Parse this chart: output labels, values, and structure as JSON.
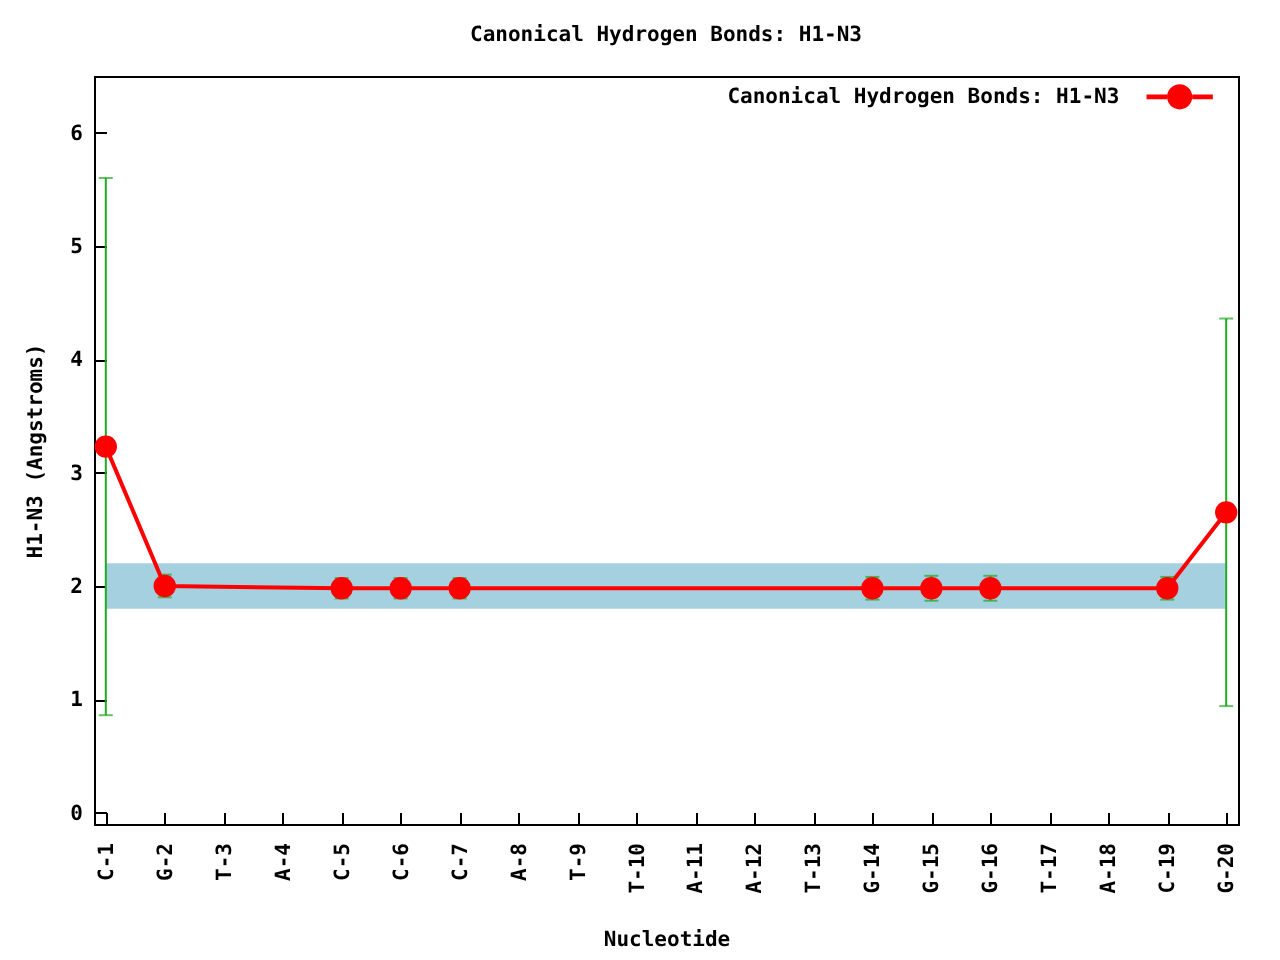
{
  "chart_data": {
    "type": "line",
    "title": "Canonical Hydrogen Bonds: H1-N3",
    "xlabel": "Nucleotide",
    "ylabel": "H1-N3 (Angstroms)",
    "categories": [
      "C-1",
      "G-2",
      "T-3",
      "A-4",
      "C-5",
      "C-6",
      "C-7",
      "A-8",
      "T-9",
      "T-10",
      "A-11",
      "A-12",
      "T-13",
      "G-14",
      "G-15",
      "G-16",
      "T-17",
      "A-18",
      "C-19",
      "G-20"
    ],
    "series": [
      {
        "name": "Canonical Hydrogen Bonds: H1-N3",
        "color": "#ff0000",
        "x": [
          "C-1",
          "G-2",
          "C-5",
          "C-6",
          "C-7",
          "G-14",
          "G-15",
          "G-16",
          "C-19",
          "G-20"
        ],
        "values": [
          3.23,
          2.0,
          1.98,
          1.98,
          1.98,
          1.98,
          1.98,
          1.98,
          1.98,
          2.65
        ],
        "errors": [
          2.37,
          0.1,
          0.09,
          0.09,
          0.09,
          0.1,
          0.11,
          0.11,
          0.1,
          1.71
        ]
      }
    ],
    "ylim": [
      -0.1,
      6.5
    ],
    "yticks": [
      0,
      1,
      2,
      3,
      4,
      5,
      6
    ],
    "bands": [
      {
        "axis": "y",
        "from": 1.8,
        "to": 2.2,
        "color": "#a4d0e0"
      }
    ],
    "marker": "circle",
    "line_style": "solid",
    "legend": "top right",
    "grid": false
  }
}
